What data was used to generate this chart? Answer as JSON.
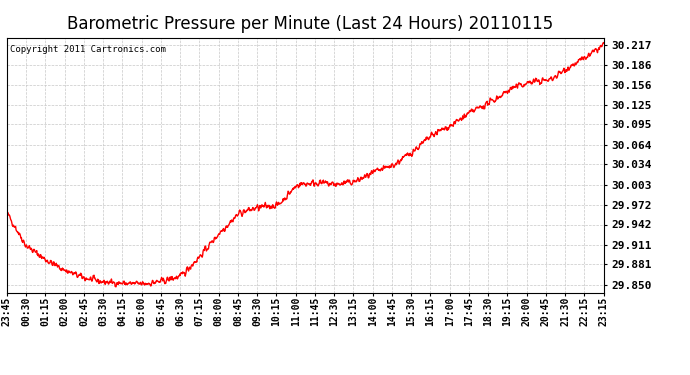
{
  "title": "Barometric Pressure per Minute (Last 24 Hours) 20110115",
  "copyright": "Copyright 2011 Cartronics.com",
  "line_color": "#ff0000",
  "background_color": "#ffffff",
  "plot_bg_color": "#ffffff",
  "grid_color": "#c8c8c8",
  "yticks": [
    29.85,
    29.881,
    29.911,
    29.942,
    29.972,
    30.003,
    30.034,
    30.064,
    30.095,
    30.125,
    30.156,
    30.186,
    30.217
  ],
  "ylim": [
    29.838,
    30.228
  ],
  "xtick_labels": [
    "23:45",
    "00:30",
    "01:15",
    "02:00",
    "02:45",
    "03:30",
    "04:15",
    "05:00",
    "05:45",
    "06:30",
    "07:15",
    "08:00",
    "08:45",
    "09:30",
    "10:15",
    "11:00",
    "11:45",
    "12:30",
    "13:15",
    "14:00",
    "14:45",
    "15:30",
    "16:15",
    "17:00",
    "17:45",
    "18:30",
    "19:15",
    "20:00",
    "20:45",
    "21:30",
    "22:15",
    "23:15"
  ],
  "title_fontsize": 12,
  "copyright_fontsize": 6.5,
  "ytick_fontsize": 8,
  "xtick_fontsize": 7,
  "line_width": 1.0,
  "knots_t": [
    0.0,
    0.032,
    0.065,
    0.097,
    0.13,
    0.162,
    0.195,
    0.227,
    0.26,
    0.292,
    0.325,
    0.357,
    0.39,
    0.422,
    0.455,
    0.487,
    0.52,
    0.552,
    0.585,
    0.617,
    0.65,
    0.682,
    0.715,
    0.747,
    0.78,
    0.812,
    0.845,
    0.877,
    0.91,
    0.942,
    0.975,
    1.0
  ],
  "knots_v": [
    29.96,
    29.91,
    29.888,
    29.872,
    29.86,
    29.854,
    29.852,
    29.851,
    29.855,
    29.863,
    29.895,
    29.93,
    29.96,
    29.968,
    29.972,
    30.003,
    30.006,
    30.003,
    30.008,
    30.022,
    30.034,
    30.055,
    30.08,
    30.095,
    30.115,
    30.13,
    30.15,
    30.16,
    30.163,
    30.183,
    30.2,
    30.217
  ]
}
